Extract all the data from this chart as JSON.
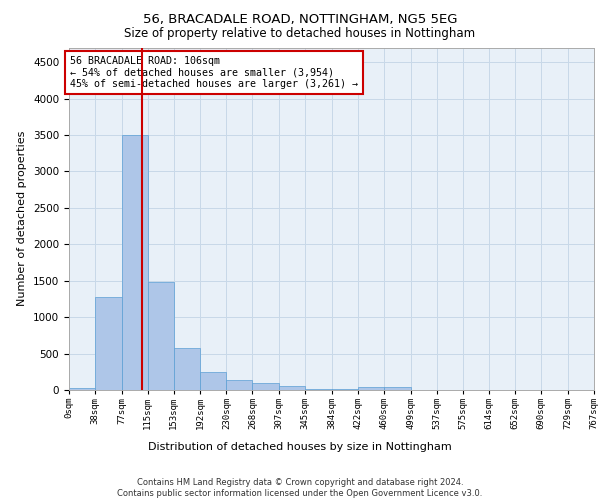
{
  "title_line1": "56, BRACADALE ROAD, NOTTINGHAM, NG5 5EG",
  "title_line2": "Size of property relative to detached houses in Nottingham",
  "xlabel": "Distribution of detached houses by size in Nottingham",
  "ylabel": "Number of detached properties",
  "bar_edges": [
    0,
    38,
    77,
    115,
    153,
    192,
    230,
    268,
    307,
    345,
    384,
    422,
    460,
    499,
    537,
    575,
    614,
    652,
    690,
    729,
    767
  ],
  "bar_heights": [
    30,
    1270,
    3500,
    1480,
    580,
    250,
    140,
    90,
    55,
    20,
    10,
    45,
    40,
    0,
    0,
    0,
    0,
    0,
    0,
    0
  ],
  "bar_color": "#aec6e8",
  "bar_edgecolor": "#5a9fd4",
  "vline_x": 106,
  "vline_color": "#cc0000",
  "annotation_text": "56 BRACADALE ROAD: 106sqm\n← 54% of detached houses are smaller (3,954)\n45% of semi-detached houses are larger (3,261) →",
  "annotation_box_color": "#ffffff",
  "annotation_box_edgecolor": "#cc0000",
  "ylim": [
    0,
    4700
  ],
  "yticks": [
    0,
    500,
    1000,
    1500,
    2000,
    2500,
    3000,
    3500,
    4000,
    4500
  ],
  "tick_labels": [
    "0sqm",
    "38sqm",
    "77sqm",
    "115sqm",
    "153sqm",
    "192sqm",
    "230sqm",
    "268sqm",
    "307sqm",
    "345sqm",
    "384sqm",
    "422sqm",
    "460sqm",
    "499sqm",
    "537sqm",
    "575sqm",
    "614sqm",
    "652sqm",
    "690sqm",
    "729sqm",
    "767sqm"
  ],
  "footer_line1": "Contains HM Land Registry data © Crown copyright and database right 2024.",
  "footer_line2": "Contains public sector information licensed under the Open Government Licence v3.0.",
  "background_color": "#ffffff",
  "grid_color": "#c8d8e8",
  "axes_facecolor": "#e8f0f8"
}
